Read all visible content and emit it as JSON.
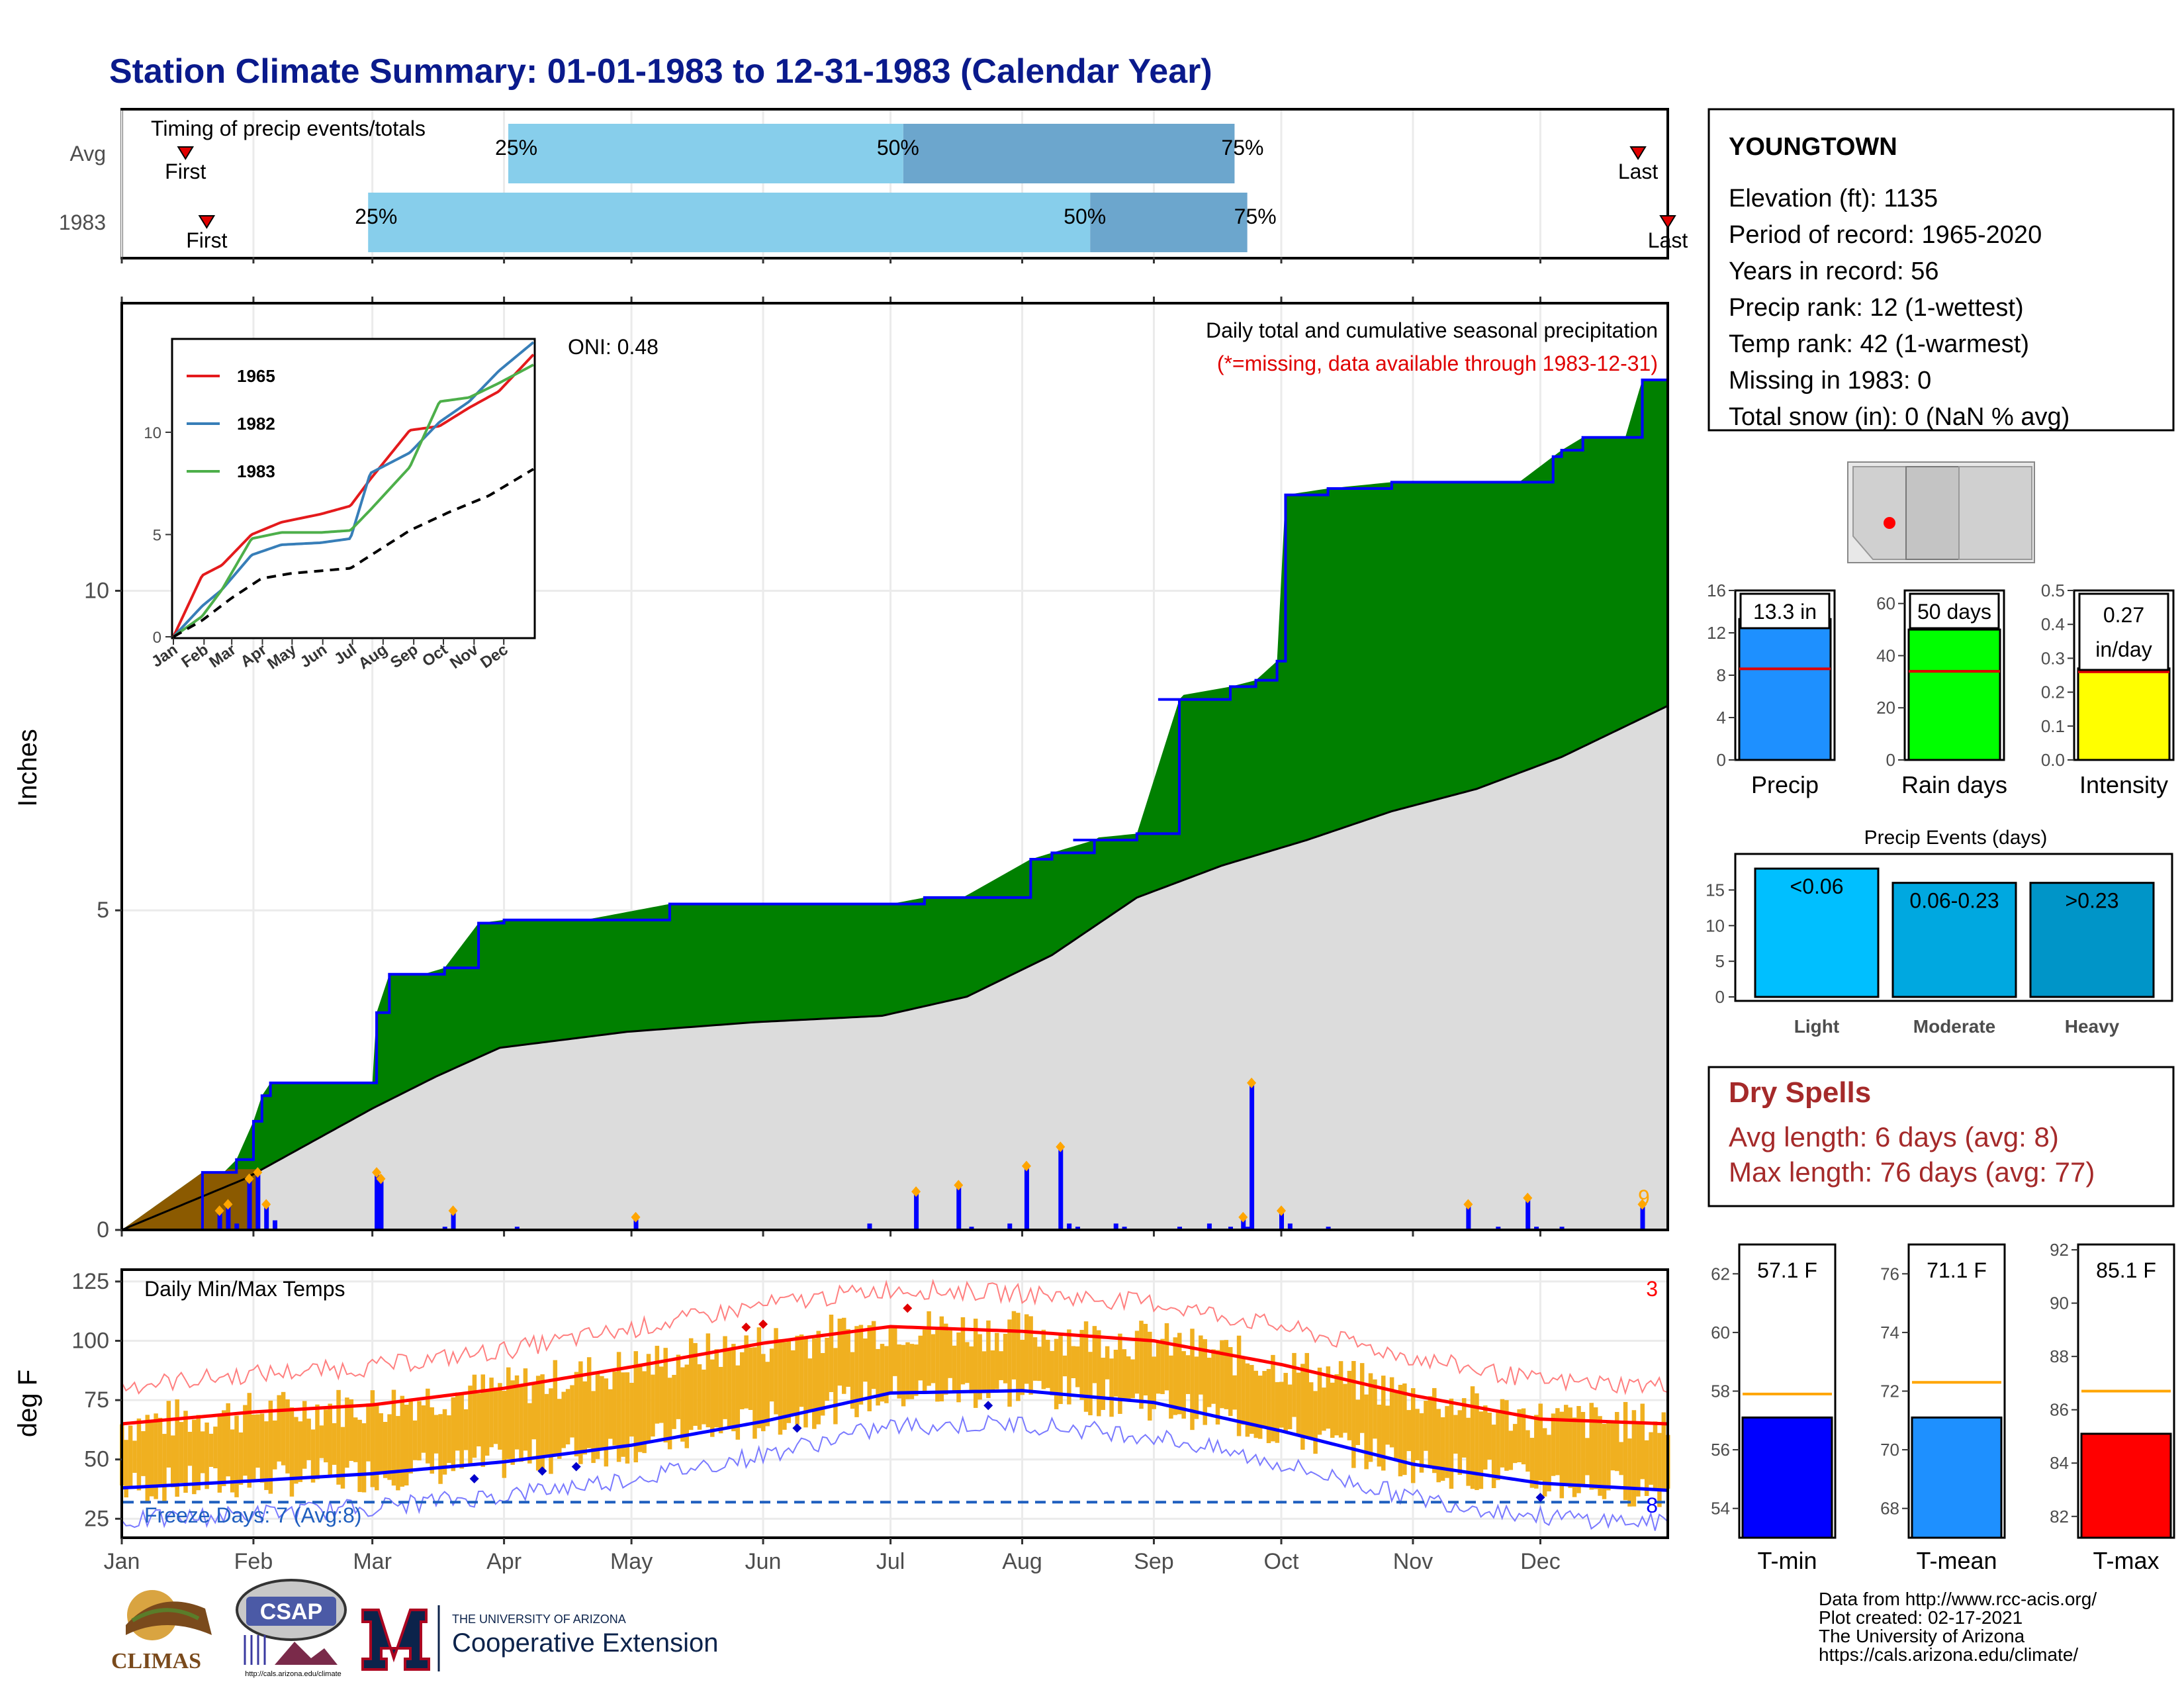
{
  "header": {
    "title": "Station Climate Summary: 01-01-1983 to 12-31-1983 (Calendar Year)"
  },
  "timing": {
    "title": "Timing of precip events/totals",
    "rows": [
      {
        "label": "Avg",
        "first": "First",
        "last": "Last",
        "p25": "25%",
        "p50": "50%",
        "p75": "75%"
      },
      {
        "label": "1983",
        "first": "First",
        "last": "Last",
        "p25": "25%",
        "p50": "50%",
        "p75": "75%"
      }
    ]
  },
  "station": {
    "name": "YOUNGTOWN",
    "lines": [
      "Elevation (ft): 1135",
      "Period of record: 1965-2020",
      "Years in record: 56",
      "Precip rank: 12 (1-wettest)",
      "Temp rank: 42 (1-warmest)",
      "Missing in 1983: 0",
      "Total snow (in): 0 (NaN % avg)"
    ]
  },
  "precip_panel": {
    "ylabel": "Inches",
    "oni": "ONI: 0.48",
    "caption": "Daily total and cumulative seasonal precipitation",
    "missing_note": "(*=missing, data available through 1983-12-31)",
    "corner_count": "9",
    "yticks": [
      "0",
      "5",
      "10"
    ]
  },
  "inset": {
    "legend": [
      "1965",
      "1982",
      "1983"
    ],
    "yticks": [
      "0",
      "5",
      "10"
    ],
    "months": [
      "Jan",
      "Feb",
      "Mar",
      "Apr",
      "May",
      "Jun",
      "Jul",
      "Aug",
      "Sep",
      "Oct",
      "Nov",
      "Dec"
    ]
  },
  "temp_panel": {
    "ylabel": "deg F",
    "title": "Daily Min/Max Temps",
    "freeze": "Freeze Days: 7 (Avg:8)",
    "corner_top": "3",
    "corner_bottom": "8",
    "yticks": [
      "25",
      "50",
      "75",
      "100",
      "125"
    ]
  },
  "months": [
    "Jan",
    "Feb",
    "Mar",
    "Apr",
    "May",
    "Jun",
    "Jul",
    "Aug",
    "Sep",
    "Oct",
    "Nov",
    "Dec"
  ],
  "mini_bars": [
    {
      "label": "Precip",
      "value_text": "13.3 in",
      "yticks": [
        "0",
        "4",
        "8",
        "12",
        "16"
      ]
    },
    {
      "label": "Rain days",
      "value_text": "50 days",
      "yticks": [
        "0",
        "20",
        "40",
        "60"
      ]
    },
    {
      "label": "Intensity",
      "value_text": "0.27 in/day",
      "value_line1": "0.27",
      "value_line2": "in/day",
      "yticks": [
        "0.0",
        "0.1",
        "0.2",
        "0.3",
        "0.4",
        "0.5"
      ]
    }
  ],
  "events": {
    "title": "Precip Events (days)",
    "yticks": [
      "0",
      "5",
      "10",
      "15"
    ],
    "bars": [
      {
        "category": "Light",
        "label": "<0.06"
      },
      {
        "category": "Moderate",
        "label": "0.06-0.23"
      },
      {
        "category": "Heavy",
        "label": ">0.23"
      }
    ]
  },
  "dry_spells": {
    "title": "Dry Spells",
    "avg": "Avg length: 6 days (avg: 8)",
    "max": "Max length: 76 days (avg: 77)"
  },
  "temp_bars": [
    {
      "label": "T-min",
      "value_text": "57.1 F",
      "yticks": [
        "54",
        "56",
        "58",
        "60",
        "62"
      ]
    },
    {
      "label": "T-mean",
      "value_text": "71.1 F",
      "yticks": [
        "68",
        "70",
        "72",
        "74",
        "76"
      ]
    },
    {
      "label": "T-max",
      "value_text": "85.1 F",
      "yticks": [
        "82",
        "84",
        "86",
        "88",
        "90",
        "92"
      ]
    }
  ],
  "credits": [
    "Data from http://www.rcc-acis.org/",
    "Plot created: 02-17-2021",
    "The University of Arizona",
    "https://cals.arizona.edu/climate/"
  ],
  "logos": {
    "climas": "CLIMAS",
    "csap": "CSAP",
    "csap_url": "http://cals.arizona.edu/climate",
    "ua_small": "THE UNIVERSITY OF ARIZONA",
    "ua_big": "Cooperative Extension"
  },
  "colors": {
    "title": "#0a1a8c",
    "precip_fill": "#008000",
    "precip_line": "#0000ff",
    "normal_fill": "#dcdcdc",
    "early_fill": "#8b5a00",
    "bars_light": "#87ceeb",
    "bars_dark": "#6ca6cd",
    "temp_bar": "#f0b020",
    "tmax_line": "#ff0000",
    "tmin_line": "#0000ff",
    "tmin_bar": "#0000ff",
    "tmean_bar": "#1e90ff",
    "tmax_bar": "#ff0000",
    "rain_days_bar": "#00ff00",
    "intensity_bar": "#ffff00",
    "precip_bar": "#1e90ff"
  },
  "chart_data": [
    {
      "type": "bar",
      "title": "Timing of precip events/totals",
      "categories": [
        "Avg",
        "1983"
      ],
      "series": [
        {
          "name": "First",
          "values": [
            "Jan 16",
            "Jan 21"
          ]
        },
        {
          "name": "25%",
          "values": [
            "Apr 2",
            "Feb 28"
          ]
        },
        {
          "name": "50%",
          "values": [
            "Jul 4",
            "Aug 17"
          ]
        },
        {
          "name": "75%",
          "values": [
            "Sep 20",
            "Sep 23"
          ]
        },
        {
          "name": "Last",
          "values": [
            "Dec 24",
            "Dec 31"
          ]
        }
      ]
    },
    {
      "type": "area",
      "title": "Daily total and cumulative seasonal precipitation",
      "ylabel": "Inches",
      "ylim": [
        0,
        14.5
      ],
      "x_unit": "day of year",
      "series": [
        {
          "name": "cumulative 1983",
          "x": [
            1,
            20,
            25,
            28,
            32,
            34,
            36,
            60,
            61,
            64,
            70,
            72,
            77,
            85,
            91,
            110,
            130,
            170,
            182,
            190,
            199,
            215,
            220,
            230,
            225,
            240,
            250,
            245,
            262,
            268,
            273,
            275,
            285,
            300,
            310,
            330,
            338,
            340,
            345,
            355,
            359,
            365
          ],
          "y": [
            0,
            0.9,
            0.9,
            1.1,
            1.7,
            2.1,
            2.3,
            2.3,
            3.4,
            4.0,
            4.0,
            4.0,
            4.1,
            4.8,
            4.85,
            4.85,
            5.1,
            5.1,
            5.1,
            5.2,
            5.2,
            5.8,
            5.9,
            6.1,
            6.1,
            6.2,
            8.3,
            8.3,
            8.5,
            8.6,
            8.9,
            11.5,
            11.6,
            11.7,
            11.7,
            11.7,
            12.1,
            12.2,
            12.4,
            12.4,
            13.3,
            13.3
          ]
        },
        {
          "name": "average cumulative",
          "x": [
            1,
            30,
            60,
            75,
            90,
            120,
            150,
            180,
            200,
            220,
            240,
            260,
            280,
            300,
            320,
            340,
            365
          ],
          "y": [
            0,
            0.8,
            1.9,
            2.4,
            2.85,
            3.1,
            3.25,
            3.35,
            3.65,
            4.3,
            5.2,
            5.7,
            6.1,
            6.55,
            6.9,
            7.4,
            8.2
          ]
        },
        {
          "name": "daily precip 1983",
          "x": [
            24,
            26,
            28,
            31,
            33,
            35,
            37,
            61,
            62,
            77,
            79,
            94,
            122,
            177,
            188,
            198,
            201,
            210,
            214,
            222,
            224,
            226,
            235,
            237,
            250,
            257,
            262,
            265,
            266,
            267,
            274,
            276,
            285,
            318,
            325,
            332,
            334,
            340,
            359
          ],
          "y": [
            0.3,
            0.4,
            0.1,
            0.8,
            0.9,
            0.4,
            0.15,
            0.9,
            0.8,
            0.05,
            0.3,
            0.05,
            0.2,
            0.1,
            0.6,
            0.7,
            0.05,
            0.1,
            1.0,
            1.3,
            0.1,
            0.05,
            0.1,
            0.05,
            0.05,
            0.1,
            0.05,
            0.2,
            0.05,
            2.3,
            0.3,
            0.1,
            0.05,
            0.4,
            0.05,
            0.5,
            0.05,
            0.05,
            0.4
          ]
        }
      ]
    },
    {
      "type": "line",
      "title": "",
      "series": [
        {
          "name": "1965",
          "x": [
            1,
            30,
            50,
            80,
            110,
            150,
            180,
            200,
            240,
            270,
            300,
            330,
            365
          ],
          "y": [
            0,
            3,
            3.5,
            5,
            5.6,
            6,
            6.4,
            7.7,
            10.1,
            10.3,
            11.2,
            12,
            13.8
          ]
        },
        {
          "name": "1982",
          "x": [
            1,
            30,
            50,
            80,
            110,
            150,
            180,
            200,
            240,
            270,
            300,
            330,
            365
          ],
          "y": [
            0,
            1.5,
            2.3,
            4,
            4.5,
            4.6,
            4.8,
            8,
            9,
            10.5,
            11.5,
            13,
            14.4
          ]
        },
        {
          "name": "1983",
          "x": [
            1,
            30,
            50,
            80,
            110,
            150,
            180,
            200,
            240,
            270,
            300,
            330,
            365
          ],
          "y": [
            0,
            1,
            2.3,
            4.8,
            5.1,
            5.1,
            5.2,
            6.2,
            8.3,
            11.5,
            11.7,
            12.4,
            13.3
          ]
        },
        {
          "name": "average",
          "x": [
            1,
            30,
            60,
            90,
            120,
            180,
            240,
            280,
            320,
            365
          ],
          "y": [
            0,
            0.8,
            1.9,
            2.85,
            3.1,
            3.35,
            5.2,
            6.1,
            6.9,
            8.2
          ]
        }
      ],
      "ylim": [
        0,
        14.5
      ]
    },
    {
      "type": "line",
      "title": "Daily Min/Max Temps",
      "ylabel": "deg F",
      "ylim": [
        20,
        127
      ],
      "series": [
        {
          "name": "average max",
          "x": [
            1,
            32,
            60,
            91,
            121,
            152,
            182,
            213,
            244,
            274,
            305,
            335,
            365
          ],
          "y": [
            65,
            70,
            73,
            80,
            89,
            99,
            106,
            104,
            100,
            90,
            77,
            67,
            65
          ]
        },
        {
          "name": "average min",
          "x": [
            1,
            32,
            60,
            91,
            121,
            152,
            182,
            213,
            244,
            274,
            305,
            335,
            365
          ],
          "y": [
            38,
            41,
            44,
            49,
            56,
            66,
            78,
            79,
            74,
            62,
            48,
            40,
            37
          ]
        }
      ]
    },
    {
      "type": "bar",
      "categories": [
        "Precip",
        "Rain days",
        "Intensity"
      ],
      "series": [
        {
          "name": "1983",
          "values": [
            13.3,
            50,
            0.27
          ]
        },
        {
          "name": "average",
          "values": [
            8.6,
            34,
            0.26
          ]
        }
      ]
    },
    {
      "type": "bar",
      "title": "Precip Events (days)",
      "categories": [
        "Light",
        "Moderate",
        "Heavy"
      ],
      "values": [
        18,
        16,
        16
      ]
    },
    {
      "type": "bar",
      "categories": [
        "T-min",
        "T-mean",
        "T-max"
      ],
      "series": [
        {
          "name": "1983",
          "values": [
            57.1,
            71.1,
            85.1
          ]
        },
        {
          "name": "average",
          "values": [
            57.9,
            72.3,
            86.7
          ]
        }
      ]
    }
  ]
}
